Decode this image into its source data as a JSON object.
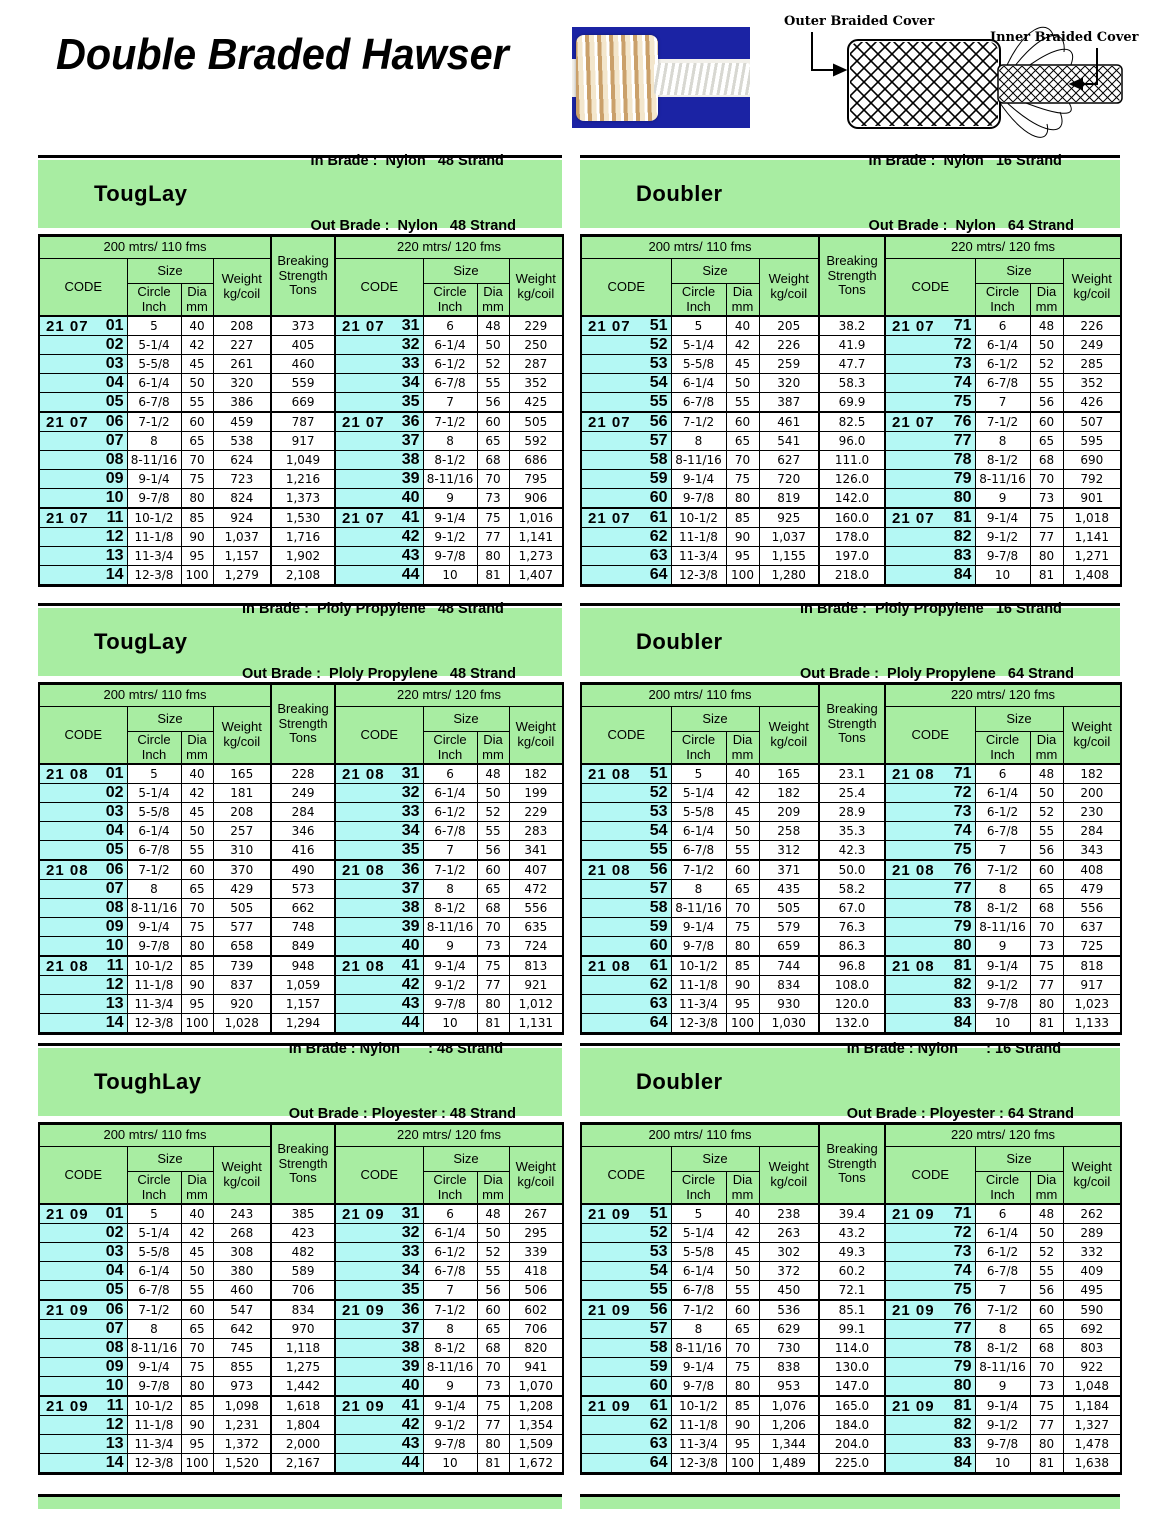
{
  "title": "Double Braded Hawser",
  "diagram": {
    "outer_label": "Outer Braided Cover",
    "inner_label": "Inner Braided Cover"
  },
  "colors": {
    "green": "#a8eda2",
    "cyan": "#b4f8f4",
    "photo_blue": "#1b23a4"
  },
  "header_labels": {
    "span200": "200 mtrs/ 110 fms",
    "span220": "220 mtrs/ 120 fms",
    "code": "CODE",
    "size": "Size",
    "circle": "Circle\nInch",
    "dia": "Dia\nmm",
    "weight": "Weight\nkg/coil",
    "breaking": "Breaking\nStrength\nTons"
  },
  "tables": [
    {
      "name": "TougLay",
      "in_line": "In Brade :  Nylon   48 Strand",
      "out_line": "Out Brade :  Nylon   48 Strand",
      "rows": [
        [
          "21 07",
          "01",
          "5",
          "40",
          "208",
          "373",
          "21 07",
          "31",
          "6",
          "48",
          "229"
        ],
        [
          "",
          "02",
          "5-1/4",
          "42",
          "227",
          "405",
          "",
          "32",
          "6-1/4",
          "50",
          "250"
        ],
        [
          "",
          "03",
          "5-5/8",
          "45",
          "261",
          "460",
          "",
          "33",
          "6-1/2",
          "52",
          "287"
        ],
        [
          "",
          "04",
          "6-1/4",
          "50",
          "320",
          "559",
          "",
          "34",
          "6-7/8",
          "55",
          "352"
        ],
        [
          "",
          "05",
          "6-7/8",
          "55",
          "386",
          "669",
          "",
          "35",
          "7",
          "56",
          "425"
        ],
        [
          "21 07",
          "06",
          "7-1/2",
          "60",
          "459",
          "787",
          "21 07",
          "36",
          "7-1/2",
          "60",
          "505"
        ],
        [
          "",
          "07",
          "8",
          "65",
          "538",
          "917",
          "",
          "37",
          "8",
          "65",
          "592"
        ],
        [
          "",
          "08",
          "8-11/16",
          "70",
          "624",
          "1,049",
          "",
          "38",
          "8-1/2",
          "68",
          "686"
        ],
        [
          "",
          "09",
          "9-1/4",
          "75",
          "723",
          "1,216",
          "",
          "39",
          "8-11/16",
          "70",
          "795"
        ],
        [
          "",
          "10",
          "9-7/8",
          "80",
          "824",
          "1,373",
          "",
          "40",
          "9",
          "73",
          "906"
        ],
        [
          "21 07",
          "11",
          "10-1/2",
          "85",
          "924",
          "1,530",
          "21 07",
          "41",
          "9-1/4",
          "75",
          "1,016"
        ],
        [
          "",
          "12",
          "11-1/8",
          "90",
          "1,037",
          "1,716",
          "",
          "42",
          "9-1/2",
          "77",
          "1,141"
        ],
        [
          "",
          "13",
          "11-3/4",
          "95",
          "1,157",
          "1,902",
          "",
          "43",
          "9-7/8",
          "80",
          "1,273"
        ],
        [
          "",
          "14",
          "12-3/8",
          "100",
          "1,279",
          "2,108",
          "",
          "44",
          "10",
          "81",
          "1,407"
        ]
      ]
    },
    {
      "name": "Doubler",
      "in_line": "In Brade :  Nylon   16 Strand",
      "out_line": "Out Brade :  Nylon   64 Strand",
      "rows": [
        [
          "21 07",
          "51",
          "5",
          "40",
          "205",
          "38.2",
          "21 07",
          "71",
          "6",
          "48",
          "226"
        ],
        [
          "",
          "52",
          "5-1/4",
          "42",
          "226",
          "41.9",
          "",
          "72",
          "6-1/4",
          "50",
          "249"
        ],
        [
          "",
          "53",
          "5-5/8",
          "45",
          "259",
          "47.7",
          "",
          "73",
          "6-1/2",
          "52",
          "285"
        ],
        [
          "",
          "54",
          "6-1/4",
          "50",
          "320",
          "58.3",
          "",
          "74",
          "6-7/8",
          "55",
          "352"
        ],
        [
          "",
          "55",
          "6-7/8",
          "55",
          "387",
          "69.9",
          "",
          "75",
          "7",
          "56",
          "426"
        ],
        [
          "21 07",
          "56",
          "7-1/2",
          "60",
          "461",
          "82.5",
          "21 07",
          "76",
          "7-1/2",
          "60",
          "507"
        ],
        [
          "",
          "57",
          "8",
          "65",
          "541",
          "96.0",
          "",
          "77",
          "8",
          "65",
          "595"
        ],
        [
          "",
          "58",
          "8-11/16",
          "70",
          "627",
          "111.0",
          "",
          "78",
          "8-1/2",
          "68",
          "690"
        ],
        [
          "",
          "59",
          "9-1/4",
          "75",
          "720",
          "126.0",
          "",
          "79",
          "8-11/16",
          "70",
          "792"
        ],
        [
          "",
          "60",
          "9-7/8",
          "80",
          "819",
          "142.0",
          "",
          "80",
          "9",
          "73",
          "901"
        ],
        [
          "21 07",
          "61",
          "10-1/2",
          "85",
          "925",
          "160.0",
          "21 07",
          "81",
          "9-1/4",
          "75",
          "1,018"
        ],
        [
          "",
          "62",
          "11-1/8",
          "90",
          "1,037",
          "178.0",
          "",
          "82",
          "9-1/2",
          "77",
          "1,141"
        ],
        [
          "",
          "63",
          "11-3/4",
          "95",
          "1,155",
          "197.0",
          "",
          "83",
          "9-7/8",
          "80",
          "1,271"
        ],
        [
          "",
          "64",
          "12-3/8",
          "100",
          "1,280",
          "218.0",
          "",
          "84",
          "10",
          "81",
          "1,408"
        ]
      ]
    },
    {
      "name": "TougLay",
      "in_line": "In Brade :  Ploly Propylene   48 Strand",
      "out_line": "Out Brade :  Ploly Propylene   48 Strand",
      "rows": [
        [
          "21 08",
          "01",
          "5",
          "40",
          "165",
          "228",
          "21 08",
          "31",
          "6",
          "48",
          "182"
        ],
        [
          "",
          "02",
          "5-1/4",
          "42",
          "181",
          "249",
          "",
          "32",
          "6-1/4",
          "50",
          "199"
        ],
        [
          "",
          "03",
          "5-5/8",
          "45",
          "208",
          "284",
          "",
          "33",
          "6-1/2",
          "52",
          "229"
        ],
        [
          "",
          "04",
          "6-1/4",
          "50",
          "257",
          "346",
          "",
          "34",
          "6-7/8",
          "55",
          "283"
        ],
        [
          "",
          "05",
          "6-7/8",
          "55",
          "310",
          "416",
          "",
          "35",
          "7",
          "56",
          "341"
        ],
        [
          "21 08",
          "06",
          "7-1/2",
          "60",
          "370",
          "490",
          "21 08",
          "36",
          "7-1/2",
          "60",
          "407"
        ],
        [
          "",
          "07",
          "8",
          "65",
          "429",
          "573",
          "",
          "37",
          "8",
          "65",
          "472"
        ],
        [
          "",
          "08",
          "8-11/16",
          "70",
          "505",
          "662",
          "",
          "38",
          "8-1/2",
          "68",
          "556"
        ],
        [
          "",
          "09",
          "9-1/4",
          "75",
          "577",
          "748",
          "",
          "39",
          "8-11/16",
          "70",
          "635"
        ],
        [
          "",
          "10",
          "9-7/8",
          "80",
          "658",
          "849",
          "",
          "40",
          "9",
          "73",
          "724"
        ],
        [
          "21 08",
          "11",
          "10-1/2",
          "85",
          "739",
          "948",
          "21 08",
          "41",
          "9-1/4",
          "75",
          "813"
        ],
        [
          "",
          "12",
          "11-1/8",
          "90",
          "837",
          "1,059",
          "",
          "42",
          "9-1/2",
          "77",
          "921"
        ],
        [
          "",
          "13",
          "11-3/4",
          "95",
          "920",
          "1,157",
          "",
          "43",
          "9-7/8",
          "80",
          "1,012"
        ],
        [
          "",
          "14",
          "12-3/8",
          "100",
          "1,028",
          "1,294",
          "",
          "44",
          "10",
          "81",
          "1,131"
        ]
      ]
    },
    {
      "name": "Doubler",
      "in_line": "In Brade :  Ploly Propylene   16 Strand",
      "out_line": "Out Brade :  Ploly Propylene   64 Strand",
      "rows": [
        [
          "21 08",
          "51",
          "5",
          "40",
          "165",
          "23.1",
          "21 08",
          "71",
          "6",
          "48",
          "182"
        ],
        [
          "",
          "52",
          "5-1/4",
          "42",
          "182",
          "25.4",
          "",
          "72",
          "6-1/4",
          "50",
          "200"
        ],
        [
          "",
          "53",
          "5-5/8",
          "45",
          "209",
          "28.9",
          "",
          "73",
          "6-1/2",
          "52",
          "230"
        ],
        [
          "",
          "54",
          "6-1/4",
          "50",
          "258",
          "35.3",
          "",
          "74",
          "6-7/8",
          "55",
          "284"
        ],
        [
          "",
          "55",
          "6-7/8",
          "55",
          "312",
          "42.3",
          "",
          "75",
          "7",
          "56",
          "343"
        ],
        [
          "21 08",
          "56",
          "7-1/2",
          "60",
          "371",
          "50.0",
          "21 08",
          "76",
          "7-1/2",
          "60",
          "408"
        ],
        [
          "",
          "57",
          "8",
          "65",
          "435",
          "58.2",
          "",
          "77",
          "8",
          "65",
          "479"
        ],
        [
          "",
          "58",
          "8-11/16",
          "70",
          "505",
          "67.0",
          "",
          "78",
          "8-1/2",
          "68",
          "556"
        ],
        [
          "",
          "59",
          "9-1/4",
          "75",
          "579",
          "76.3",
          "",
          "79",
          "8-11/16",
          "70",
          "637"
        ],
        [
          "",
          "60",
          "9-7/8",
          "80",
          "659",
          "86.3",
          "",
          "80",
          "9",
          "73",
          "725"
        ],
        [
          "21 08",
          "61",
          "10-1/2",
          "85",
          "744",
          "96.8",
          "21 08",
          "81",
          "9-1/4",
          "75",
          "818"
        ],
        [
          "",
          "62",
          "11-1/8",
          "90",
          "834",
          "108.0",
          "",
          "82",
          "9-1/2",
          "77",
          "917"
        ],
        [
          "",
          "63",
          "11-3/4",
          "95",
          "930",
          "120.0",
          "",
          "83",
          "9-7/8",
          "80",
          "1,023"
        ],
        [
          "",
          "64",
          "12-3/8",
          "100",
          "1,030",
          "132.0",
          "",
          "84",
          "10",
          "81",
          "1,133"
        ]
      ]
    },
    {
      "name": "ToughLay",
      "in_line": "In Brade : Nylon       : 48 Strand",
      "out_line": "Out Brade : Ployester : 48 Strand",
      "rows": [
        [
          "21 09",
          "01",
          "5",
          "40",
          "243",
          "385",
          "21 09",
          "31",
          "6",
          "48",
          "267"
        ],
        [
          "",
          "02",
          "5-1/4",
          "42",
          "268",
          "423",
          "",
          "32",
          "6-1/4",
          "50",
          "295"
        ],
        [
          "",
          "03",
          "5-5/8",
          "45",
          "308",
          "482",
          "",
          "33",
          "6-1/2",
          "52",
          "339"
        ],
        [
          "",
          "04",
          "6-1/4",
          "50",
          "380",
          "589",
          "",
          "34",
          "6-7/8",
          "55",
          "418"
        ],
        [
          "",
          "05",
          "6-7/8",
          "55",
          "460",
          "706",
          "",
          "35",
          "7",
          "56",
          "506"
        ],
        [
          "21 09",
          "06",
          "7-1/2",
          "60",
          "547",
          "834",
          "21 09",
          "36",
          "7-1/2",
          "60",
          "602"
        ],
        [
          "",
          "07",
          "8",
          "65",
          "642",
          "970",
          "",
          "37",
          "8",
          "65",
          "706"
        ],
        [
          "",
          "08",
          "8-11/16",
          "70",
          "745",
          "1,118",
          "",
          "38",
          "8-1/2",
          "68",
          "820"
        ],
        [
          "",
          "09",
          "9-1/4",
          "75",
          "855",
          "1,275",
          "",
          "39",
          "8-11/16",
          "70",
          "941"
        ],
        [
          "",
          "10",
          "9-7/8",
          "80",
          "973",
          "1,442",
          "",
          "40",
          "9",
          "73",
          "1,070"
        ],
        [
          "21 09",
          "11",
          "10-1/2",
          "85",
          "1,098",
          "1,618",
          "21 09",
          "41",
          "9-1/4",
          "75",
          "1,208"
        ],
        [
          "",
          "12",
          "11-1/8",
          "90",
          "1,231",
          "1,804",
          "",
          "42",
          "9-1/2",
          "77",
          "1,354"
        ],
        [
          "",
          "13",
          "11-3/4",
          "95",
          "1,372",
          "2,000",
          "",
          "43",
          "9-7/8",
          "80",
          "1,509"
        ],
        [
          "",
          "14",
          "12-3/8",
          "100",
          "1,520",
          "2,167",
          "",
          "44",
          "10",
          "81",
          "1,672"
        ]
      ]
    },
    {
      "name": "Doubler",
      "in_line": "In Brade : Nylon       : 16 Strand",
      "out_line": "Out Brade : Ployester : 64 Strand",
      "rows": [
        [
          "21 09",
          "51",
          "5",
          "40",
          "238",
          "39.4",
          "21 09",
          "71",
          "6",
          "48",
          "262"
        ],
        [
          "",
          "52",
          "5-1/4",
          "42",
          "263",
          "43.2",
          "",
          "72",
          "6-1/4",
          "50",
          "289"
        ],
        [
          "",
          "53",
          "5-5/8",
          "45",
          "302",
          "49.3",
          "",
          "73",
          "6-1/2",
          "52",
          "332"
        ],
        [
          "",
          "54",
          "6-1/4",
          "50",
          "372",
          "60.2",
          "",
          "74",
          "6-7/8",
          "55",
          "409"
        ],
        [
          "",
          "55",
          "6-7/8",
          "55",
          "450",
          "72.1",
          "",
          "75",
          "7",
          "56",
          "495"
        ],
        [
          "21 09",
          "56",
          "7-1/2",
          "60",
          "536",
          "85.1",
          "21 09",
          "76",
          "7-1/2",
          "60",
          "590"
        ],
        [
          "",
          "57",
          "8",
          "65",
          "629",
          "99.1",
          "",
          "77",
          "8",
          "65",
          "692"
        ],
        [
          "",
          "58",
          "8-11/16",
          "70",
          "730",
          "114.0",
          "",
          "78",
          "8-1/2",
          "68",
          "803"
        ],
        [
          "",
          "59",
          "9-1/4",
          "75",
          "838",
          "130.0",
          "",
          "79",
          "8-11/16",
          "70",
          "922"
        ],
        [
          "",
          "60",
          "9-7/8",
          "80",
          "953",
          "147.0",
          "",
          "80",
          "9",
          "73",
          "1,048"
        ],
        [
          "21 09",
          "61",
          "10-1/2",
          "85",
          "1,076",
          "165.0",
          "21 09",
          "81",
          "9-1/4",
          "75",
          "1,184"
        ],
        [
          "",
          "62",
          "11-1/8",
          "90",
          "1,206",
          "184.0",
          "",
          "82",
          "9-1/2",
          "77",
          "1,327"
        ],
        [
          "",
          "63",
          "11-3/4",
          "95",
          "1,344",
          "204.0",
          "",
          "83",
          "9-7/8",
          "80",
          "1,478"
        ],
        [
          "",
          "64",
          "12-3/8",
          "100",
          "1,489",
          "225.0",
          "",
          "84",
          "10",
          "81",
          "1,638"
        ]
      ]
    }
  ]
}
